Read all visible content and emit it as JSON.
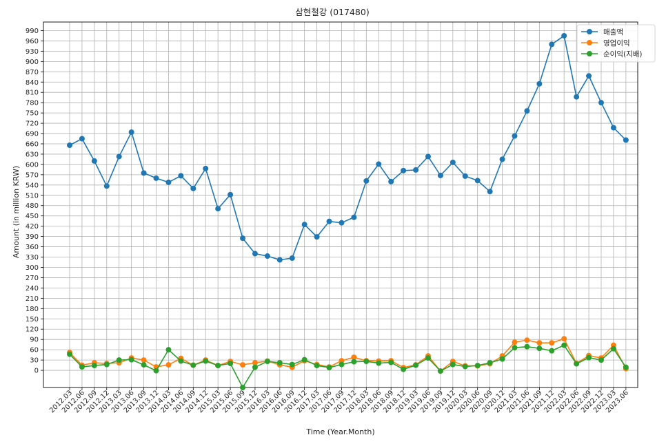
{
  "chart_data": {
    "type": "line",
    "title": "삼현철강 (017480)",
    "xlabel": "Time (Year.Month)",
    "ylabel": "Amount (in million KRW)",
    "ylim": [
      -50,
      1015
    ],
    "yticks": [
      0,
      30,
      60,
      90,
      120,
      150,
      180,
      210,
      240,
      270,
      300,
      330,
      360,
      390,
      420,
      450,
      480,
      510,
      540,
      570,
      600,
      630,
      660,
      690,
      720,
      750,
      780,
      810,
      840,
      870,
      900,
      930,
      960,
      990
    ],
    "grid": true,
    "legend_position": "top-right",
    "categories": [
      "2012.03",
      "2012.06",
      "2012.09",
      "2012.12",
      "2013.03",
      "2013.06",
      "2013.09",
      "2013.12",
      "2014.03",
      "2014.06",
      "2014.09",
      "2014.12",
      "2015.03",
      "2015.06",
      "2015.09",
      "2015.12",
      "2016.03",
      "2016.06",
      "2016.09",
      "2016.12",
      "2017.03",
      "2017.06",
      "2017.09",
      "2017.12",
      "2018.03",
      "2018.06",
      "2018.09",
      "2018.12",
      "2019.03",
      "2019.06",
      "2019.09",
      "2019.12",
      "2020.03",
      "2020.06",
      "2020.09",
      "2020.12",
      "2021.03",
      "2021.06",
      "2021.09",
      "2021.12",
      "2022.03",
      "2022.06",
      "2022.09",
      "2022.12",
      "2023.03",
      "2023.06"
    ],
    "series": [
      {
        "name": "매출액",
        "color": "#1f77b4",
        "values": [
          656,
          675,
          610,
          537,
          623,
          694,
          575,
          560,
          548,
          567,
          530,
          588,
          471,
          512,
          385,
          340,
          333,
          322,
          327,
          425,
          389,
          434,
          430,
          446,
          552,
          601,
          550,
          582,
          584,
          623,
          568,
          606,
          566,
          553,
          521,
          615,
          683,
          756,
          835,
          950,
          975,
          797,
          858,
          780,
          707,
          671
        ]
      },
      {
        "name": "영업이익",
        "color": "#ff7f0e",
        "values": [
          52,
          15,
          22,
          20,
          22,
          36,
          30,
          10,
          16,
          35,
          15,
          30,
          14,
          26,
          16,
          22,
          27,
          16,
          9,
          28,
          17,
          10,
          28,
          38,
          28,
          27,
          28,
          8,
          16,
          42,
          -2,
          26,
          13,
          13,
          19,
          42,
          82,
          88,
          80,
          80,
          92,
          20,
          43,
          36,
          73,
          5
        ]
      },
      {
        "name": "순이익(지배)",
        "color": "#2ca02c",
        "values": [
          47,
          10,
          14,
          17,
          30,
          31,
          16,
          -1,
          60,
          27,
          15,
          27,
          14,
          20,
          -50,
          9,
          26,
          22,
          17,
          31,
          14,
          8,
          17,
          25,
          26,
          21,
          23,
          3,
          15,
          36,
          -2,
          17,
          11,
          14,
          22,
          33,
          66,
          69,
          64,
          57,
          73,
          19,
          37,
          30,
          63,
          9
        ]
      }
    ]
  }
}
